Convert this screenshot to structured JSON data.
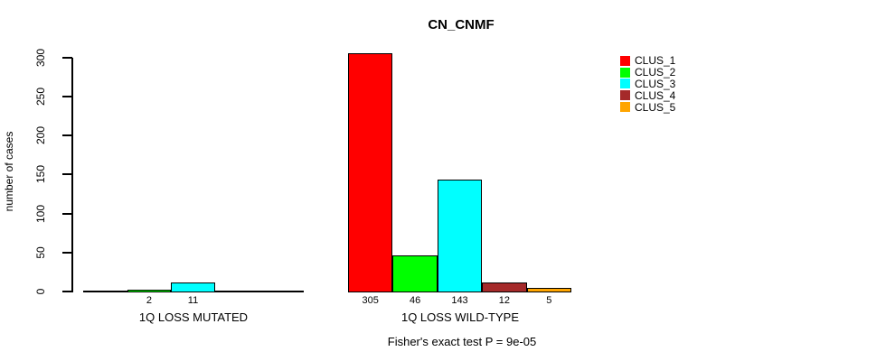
{
  "title": "CN_CNMF",
  "annotation": "Fisher's exact test P = 9e-05",
  "chart_data": {
    "type": "bar",
    "title": "CN_CNMF",
    "xlabel": "",
    "ylabel": "number of cases",
    "ylim": [
      0,
      300
    ],
    "yticks": [
      0,
      50,
      100,
      150,
      200,
      250,
      300
    ],
    "grid": false,
    "legend_position": "right",
    "groups": [
      {
        "label": "1Q LOSS MUTATED"
      },
      {
        "label": "1Q LOSS WILD-TYPE"
      }
    ],
    "series": [
      {
        "name": "CLUS_1",
        "color": "#ff0000",
        "values": [
          0,
          305
        ]
      },
      {
        "name": "CLUS_2",
        "color": "#00ff00",
        "values": [
          2,
          46
        ]
      },
      {
        "name": "CLUS_3",
        "color": "#00ffff",
        "values": [
          11,
          143
        ]
      },
      {
        "name": "CLUS_4",
        "color": "#a52a2a",
        "values": [
          0,
          12
        ]
      },
      {
        "name": "CLUS_5",
        "color": "#ffa500",
        "values": [
          0,
          5
        ]
      }
    ],
    "bar_value_labels_shown": [
      "2",
      "11",
      "305",
      "46",
      "143",
      "12",
      "5"
    ],
    "zero_value_bars_drawn_as_flat_lines": true
  }
}
